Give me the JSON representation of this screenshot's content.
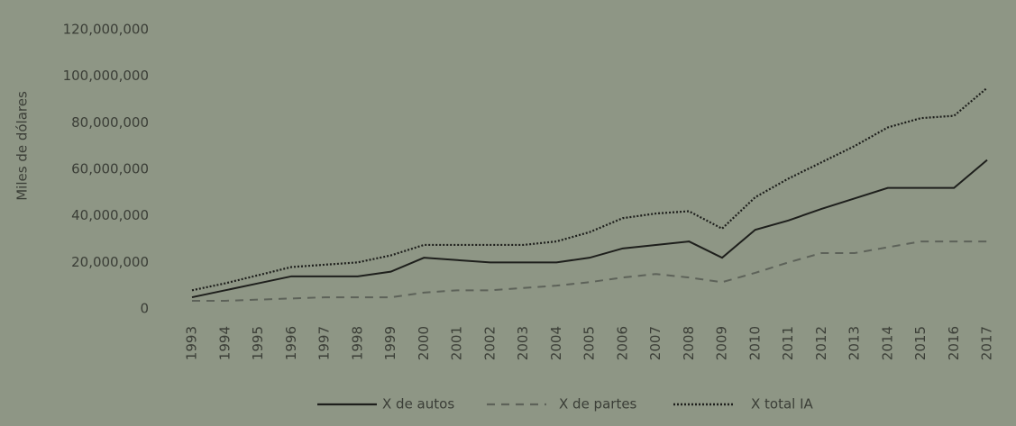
{
  "chart_data": {
    "type": "line",
    "y_label": "Miles de dólares",
    "categories": [
      "1993",
      "1994",
      "1995",
      "1996",
      "1997",
      "1998",
      "1999",
      "2000",
      "2001",
      "2002",
      "2003",
      "2004",
      "2005",
      "2006",
      "2007",
      "2008",
      "2009",
      "2010",
      "2011",
      "2012",
      "2013",
      "2014",
      "2015",
      "2016",
      "2017"
    ],
    "series": [
      {
        "name": "X de autos",
        "color": "#1e1f1c",
        "dash": "solid",
        "values": [
          5000000,
          8000000,
          11000000,
          14000000,
          14000000,
          14000000,
          16000000,
          22000000,
          21000000,
          20000000,
          20000000,
          20000000,
          22000000,
          26000000,
          27500000,
          29000000,
          22000000,
          34000000,
          38000000,
          43000000,
          47500000,
          52000000,
          52000000,
          52000000,
          64000000
        ]
      },
      {
        "name": "X de partes",
        "color": "#5d6259",
        "dash": "dashed",
        "values": [
          3500000,
          3500000,
          4000000,
          4500000,
          5000000,
          5000000,
          5000000,
          7000000,
          8000000,
          8000000,
          9000000,
          10000000,
          11500000,
          13500000,
          15000000,
          13500000,
          11500000,
          15500000,
          20000000,
          24000000,
          24000000,
          26500000,
          29000000,
          29000000,
          29000000
        ]
      },
      {
        "name": "X total IA",
        "color": "#1e1f1c",
        "dash": "dotted",
        "values": [
          8000000,
          11000000,
          14500000,
          18000000,
          19000000,
          20000000,
          23000000,
          27500000,
          27500000,
          27500000,
          27500000,
          29000000,
          33000000,
          39000000,
          41000000,
          42000000,
          34500000,
          48000000,
          56000000,
          63000000,
          70000000,
          78000000,
          82000000,
          83000000,
          95000000
        ]
      }
    ],
    "ylim": [
      0,
      120000000
    ],
    "yticks": [
      0,
      {
        "value": 20000000,
        "label": "20,000,000"
      },
      {
        "value": 40000000,
        "label": "40,000,000"
      },
      {
        "value": 60000000,
        "label": "60,000,000"
      },
      {
        "value": 80000000,
        "label": "80,000,000"
      },
      {
        "value": 100000000,
        "label": "100,000,000"
      },
      {
        "value": 120000000,
        "label": "120,000,000"
      }
    ],
    "grid": false,
    "legend": "bottom"
  }
}
